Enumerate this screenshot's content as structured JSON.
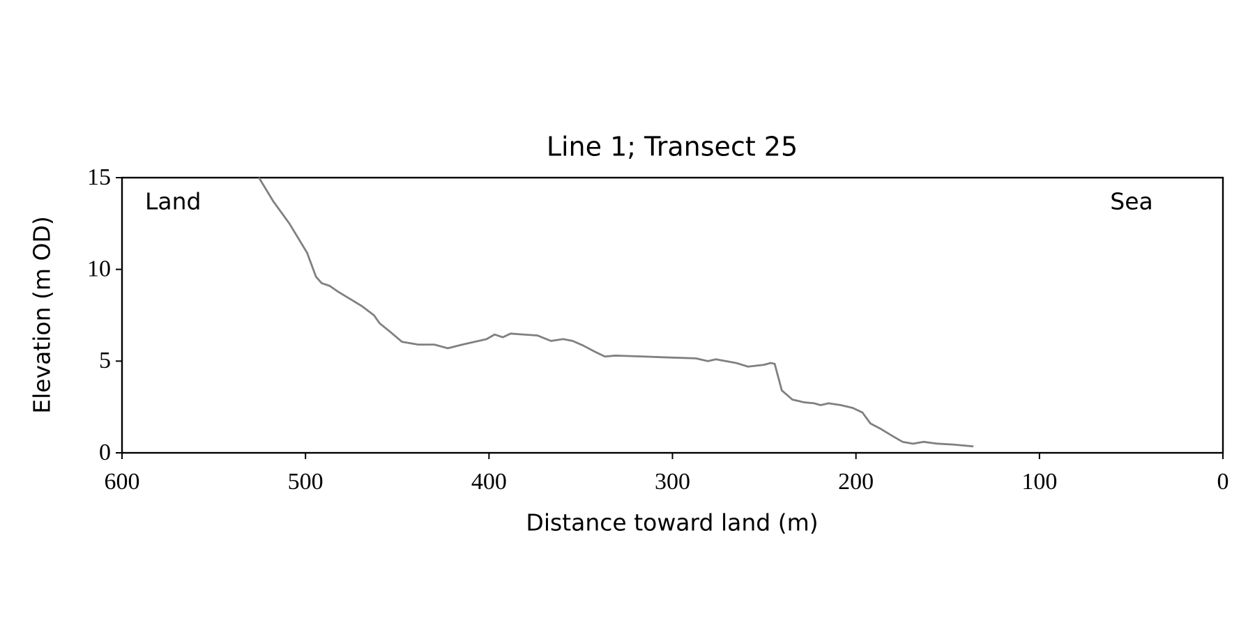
{
  "chart_data": {
    "type": "line",
    "title": "Line 1; Transect 25",
    "xlabel": "Distance toward land (m)",
    "ylabel": "Elevation (m OD)",
    "annotations": [
      "Land",
      "Sea"
    ],
    "xlim": [
      600,
      0
    ],
    "ylim": [
      0,
      15
    ],
    "xticks": [
      600,
      500,
      400,
      300,
      200,
      100,
      0
    ],
    "yticks": [
      0,
      5,
      10,
      15
    ],
    "grid": false,
    "series": [
      {
        "color": "#808080",
        "x": [
          525.4,
          517.5,
          508.8,
          499.1,
          494.3,
          491.2,
          486.8,
          482.5,
          475.9,
          469.3,
          462.7,
          459.6,
          453.9,
          447.4,
          438.6,
          429.8,
          422.4,
          414.5,
          405.7,
          401.3,
          396.9,
          392.5,
          388.2,
          381.6,
          373.7,
          366.2,
          359.6,
          354.4,
          348.7,
          342.1,
          336.8,
          331.1,
          315.8,
          302.6,
          287.3,
          280.7,
          276.3,
          265.4,
          258.8,
          250,
          246.5,
          244.3,
          240.4,
          234.6,
          228.1,
          222.8,
          219.3,
          214.9,
          208.3,
          201.8,
          196.5,
          192.1,
          186.4,
          179.8,
          174.6,
          168.9,
          163.2,
          155.7,
          146.9,
          136
        ],
        "values": [
          15,
          13.7,
          12.5,
          10.9,
          9.6,
          9.25,
          9.1,
          8.8,
          8.4,
          8.0,
          7.5,
          7.06,
          6.6,
          6.05,
          5.9,
          5.9,
          5.7,
          5.9,
          6.1,
          6.2,
          6.45,
          6.3,
          6.5,
          6.45,
          6.4,
          6.1,
          6.2,
          6.1,
          5.85,
          5.5,
          5.25,
          5.3,
          5.25,
          5.2,
          5.15,
          5.0,
          5.1,
          4.9,
          4.7,
          4.8,
          4.9,
          4.85,
          3.4,
          2.9,
          2.75,
          2.7,
          2.6,
          2.7,
          2.6,
          2.45,
          2.2,
          1.6,
          1.3,
          0.9,
          0.6,
          0.5,
          0.6,
          0.5,
          0.45,
          0.35
        ]
      }
    ]
  }
}
